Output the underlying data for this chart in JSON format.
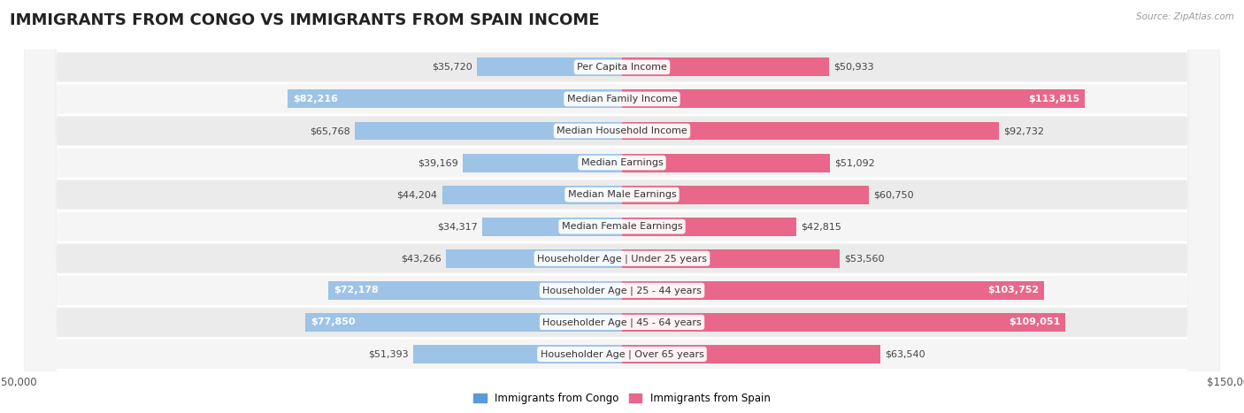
{
  "title": "IMMIGRANTS FROM CONGO VS IMMIGRANTS FROM SPAIN INCOME",
  "source": "Source: ZipAtlas.com",
  "categories": [
    "Per Capita Income",
    "Median Family Income",
    "Median Household Income",
    "Median Earnings",
    "Median Male Earnings",
    "Median Female Earnings",
    "Householder Age | Under 25 years",
    "Householder Age | 25 - 44 years",
    "Householder Age | 45 - 64 years",
    "Householder Age | Over 65 years"
  ],
  "congo_values": [
    35720,
    82216,
    65768,
    39169,
    44204,
    34317,
    43266,
    72178,
    77850,
    51393
  ],
  "spain_values": [
    50933,
    113815,
    92732,
    51092,
    60750,
    42815,
    53560,
    103752,
    109051,
    63540
  ],
  "congo_labels": [
    "$35,720",
    "$82,216",
    "$65,768",
    "$39,169",
    "$44,204",
    "$34,317",
    "$43,266",
    "$72,178",
    "$77,850",
    "$51,393"
  ],
  "spain_labels": [
    "$50,933",
    "$113,815",
    "$92,732",
    "$51,092",
    "$60,750",
    "$42,815",
    "$53,560",
    "$103,752",
    "$109,051",
    "$63,540"
  ],
  "max_value": 150000,
  "congo_color_dark": "#5b9bd5",
  "congo_color_light": "#9dc3e6",
  "spain_color_dark": "#e8678a",
  "spain_color_light": "#f4afc3",
  "bar_height": 0.58,
  "background_color": "#ffffff",
  "row_bg_odd": "#eeeeee",
  "row_bg_even": "#f8f8f8",
  "title_fontsize": 13,
  "label_fontsize": 8,
  "cat_fontsize": 8,
  "legend_fontsize": 8.5,
  "axis_label_fontsize": 8.5,
  "legend_congo": "Immigrants from Congo",
  "legend_spain": "Immigrants from Spain"
}
